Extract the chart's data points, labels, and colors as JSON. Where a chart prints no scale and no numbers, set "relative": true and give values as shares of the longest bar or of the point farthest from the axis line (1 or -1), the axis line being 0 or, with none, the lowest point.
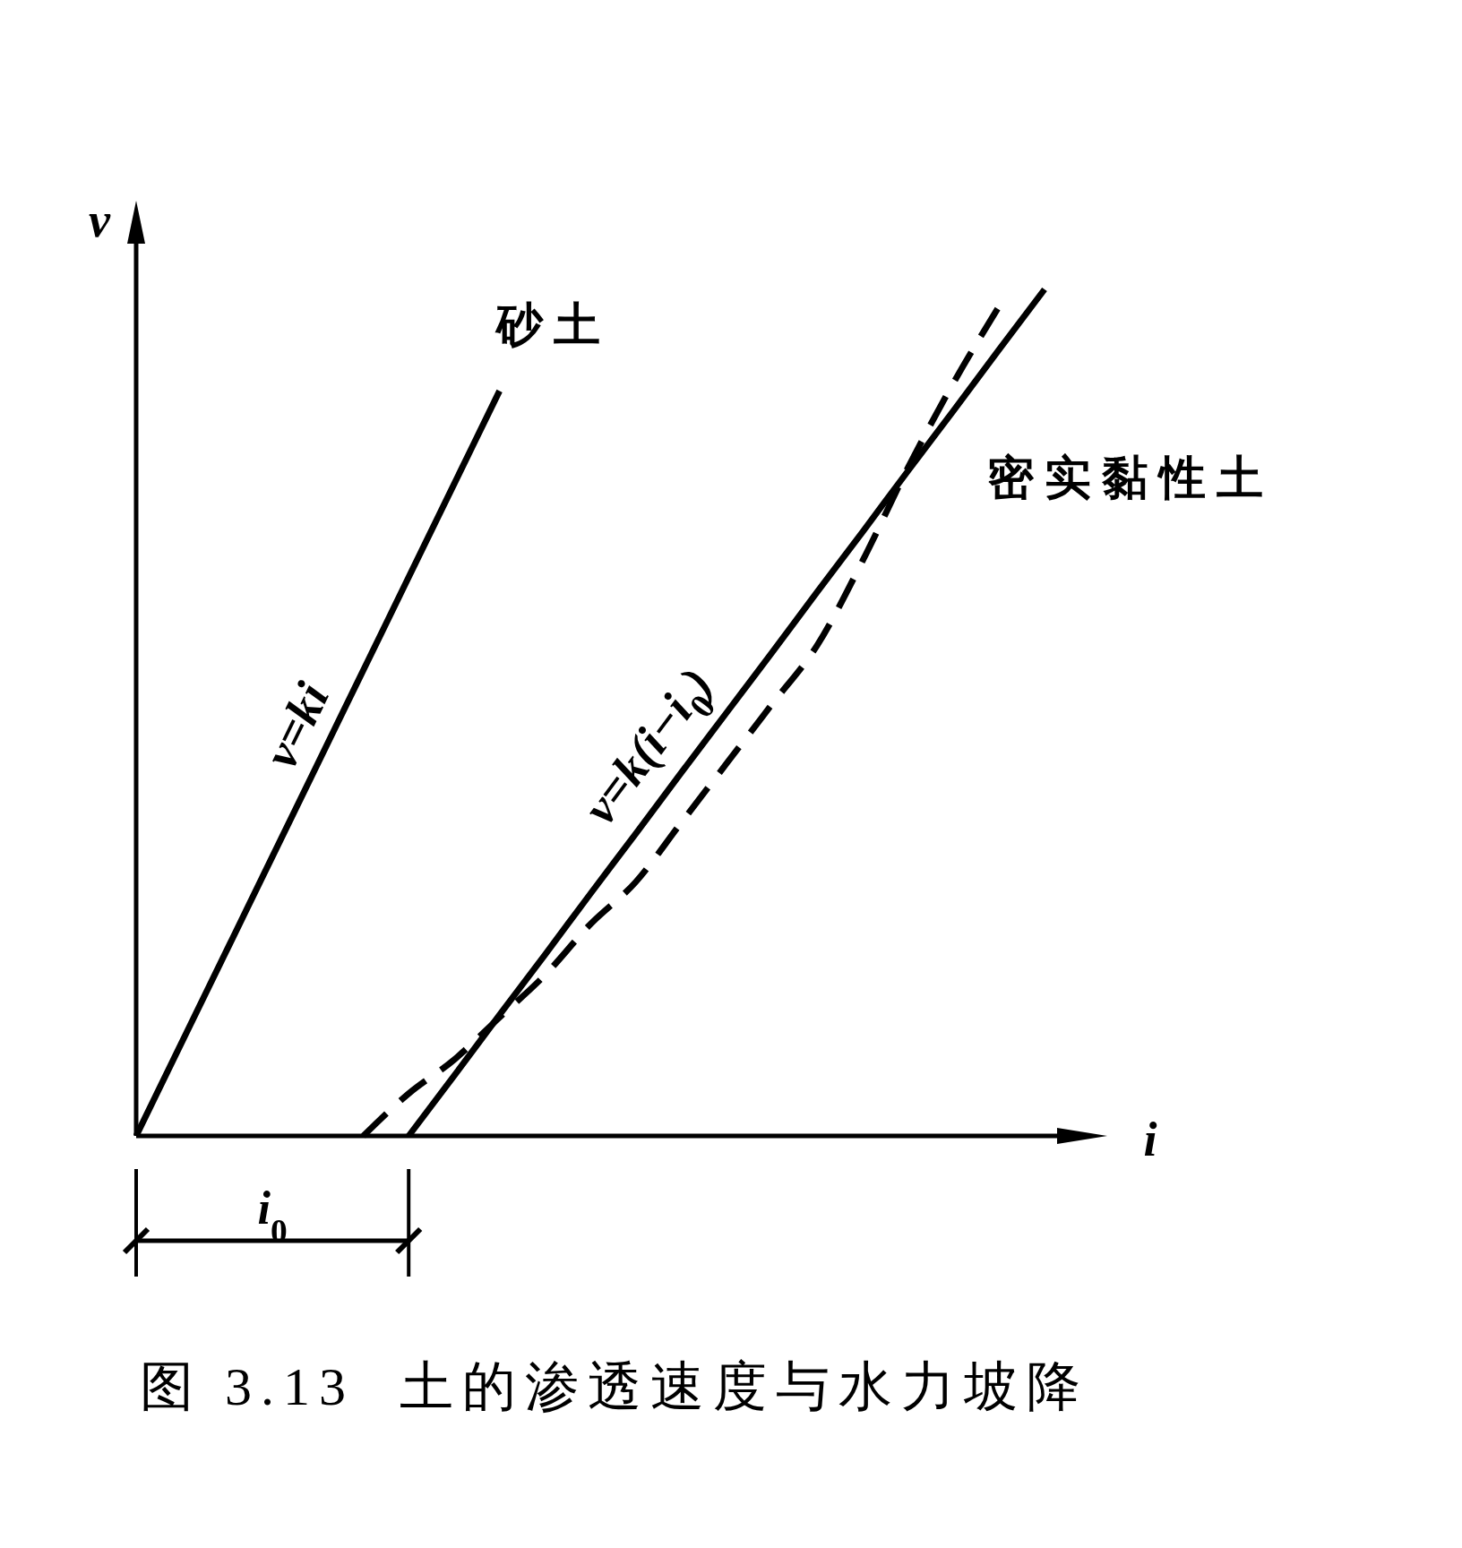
{
  "chart_data": {
    "type": "line",
    "title": "图 3.13  土的渗透速度与水力坡降",
    "xlabel": "i",
    "ylabel": "v",
    "relative": true,
    "line_style": "solid",
    "categories": [
      null,
      null,
      null,
      null,
      null,
      null,
      null,
      null,
      null,
      null,
      null,
      null,
      null,
      null,
      null,
      null,
      null,
      null,
      null,
      null,
      null
    ],
    "series": [
      {
        "name": "砂土",
        "color": "#000000",
        "values": [
          0,
          0.11,
          0.22,
          0.33,
          0.44,
          0.55,
          0.66,
          0.77,
          0.88,
          null,
          null,
          null,
          null,
          null,
          null,
          null,
          null,
          null,
          null,
          null,
          null
        ]
      },
      {
        "name": "密实黏性土",
        "color": "#000000",
        "values": [
          null,
          null,
          null,
          null,
          null,
          null,
          0,
          0.071,
          0.143,
          0.214,
          0.286,
          0.357,
          0.429,
          0.5,
          0.571,
          0.643,
          0.714,
          0.786,
          0.857,
          0.929,
          1
        ]
      },
      {
        "color": "#000000",
        "line_style": "dashed",
        "values": [
          null,
          null,
          null,
          null,
          null,
          0,
          0.05,
          0.09,
          0.14,
          0.19,
          0.25,
          0.3,
          0.37,
          0.44,
          0.51,
          0.58,
          0.68,
          0.79,
          0.89,
          0.98,
          null
        ]
      }
    ],
    "annotations": [
      "v=ki",
      "v=k(i−i$_{0}$)",
      "i$_{0}$"
    ]
  }
}
